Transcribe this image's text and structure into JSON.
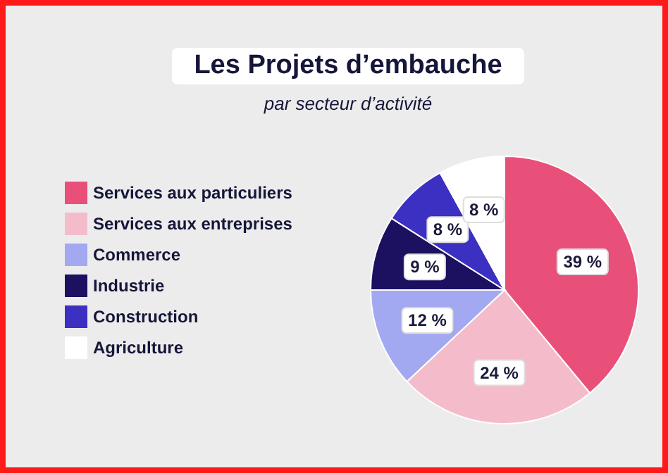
{
  "chart_data": {
    "type": "pie",
    "title": "Les Projets d’embauche",
    "subtitle": "par secteur d’activité",
    "categories": [
      "Services aux particuliers",
      "Services aux entreprises",
      "Commerce",
      "Industrie",
      "Construction",
      "Agriculture"
    ],
    "values": [
      39,
      24,
      12,
      9,
      8,
      8
    ],
    "value_labels": [
      "39 %",
      "24 %",
      "12 %",
      "9 %",
      "8 %",
      "8 %"
    ],
    "colors": [
      "#e8507a",
      "#f4bccb",
      "#a3a9f0",
      "#1c1060",
      "#3b30c2",
      "#ffffff"
    ],
    "legend": "left"
  }
}
